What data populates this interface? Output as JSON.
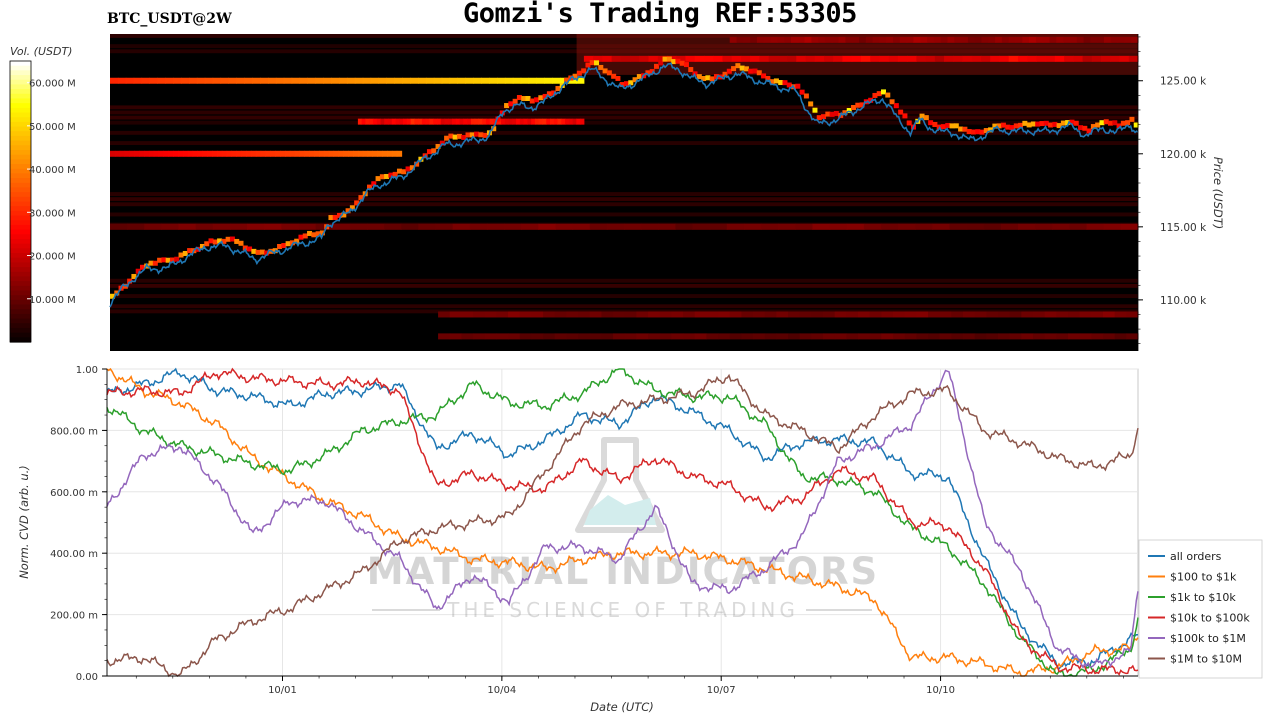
{
  "header": {
    "title": "Gomzi's Trading REF:53305",
    "symbol": "BTC_USDT@2W"
  },
  "watermark": {
    "brand": "MATERIAL INDICATORS",
    "tagline": "THE SCIENCE OF TRADING"
  },
  "chart_data": [
    {
      "type": "heatmap",
      "title": "BTC_USDT@2W",
      "ylabel": "Price (USDT)",
      "ylim": [
        106.5,
        128.2
      ],
      "yticks": [
        {
          "value": 110,
          "label": "110.00 k"
        },
        {
          "value": 115,
          "label": "115.00 k"
        },
        {
          "value": 120,
          "label": "120.00 k"
        },
        {
          "value": 125,
          "label": "125.00 k"
        }
      ],
      "xlim": [
        0,
        14.1
      ],
      "colorbar": {
        "label": "Vol. (USDT)",
        "range": [
          0,
          65
        ],
        "ticks": [
          {
            "value": 10,
            "label": "10.000 M"
          },
          {
            "value": 20,
            "label": "20.000 M"
          },
          {
            "value": 30,
            "label": "30.000 M"
          },
          {
            "value": 40,
            "label": "40.000 M"
          },
          {
            "value": 50,
            "label": "50.000 M"
          },
          {
            "value": 60,
            "label": "60.000 M"
          }
        ]
      },
      "price_series": {
        "name": "price",
        "color": "#1f77b4",
        "x": [
          0.0,
          0.2,
          0.35,
          0.5,
          0.8,
          1.0,
          1.3,
          1.6,
          1.9,
          2.0,
          2.3,
          2.6,
          2.9,
          3.0,
          3.3,
          3.5,
          3.7,
          4.0,
          4.3,
          4.6,
          4.9,
          5.2,
          5.4,
          5.6,
          5.8,
          5.95,
          6.2,
          6.6,
          7.0,
          7.3,
          7.6,
          7.8,
          8.0,
          8.2,
          8.6,
          9.0,
          9.4,
          9.7,
          10.0,
          10.3,
          10.6,
          10.8,
          10.98,
          11.1,
          11.25,
          11.4,
          11.6,
          11.8,
          12.0,
          12.2,
          12.4,
          12.6,
          12.8,
          13.0,
          13.2,
          13.4,
          13.6,
          13.8,
          14.0,
          14.05
        ],
        "y": [
          109.8,
          110.9,
          111.6,
          112.1,
          112.2,
          112.8,
          113.6,
          113.7,
          113.0,
          112.8,
          113.3,
          113.8,
          114.2,
          115.2,
          116.0,
          117.2,
          117.9,
          118.4,
          119.6,
          120.6,
          120.8,
          121.2,
          123.0,
          123.3,
          123.2,
          123.5,
          124.6,
          125.8,
          124.4,
          125.1,
          126.0,
          125.8,
          125.1,
          124.8,
          125.5,
          124.8,
          124.3,
          122.0,
          122.4,
          123.2,
          123.8,
          122.4,
          121.5,
          122.3,
          121.8,
          121.5,
          121.4,
          120.9,
          121.3,
          121.7,
          121.5,
          121.6,
          121.5,
          121.7,
          121.9,
          121.2,
          121.8,
          121.4,
          122.1,
          121.5
        ]
      },
      "liquidity_bands": [
        {
          "price": 125.0,
          "x_start": 0.0,
          "x_end": 6.5,
          "vol": 55
        },
        {
          "price": 120.0,
          "x_start": 0.0,
          "x_end": 4.0,
          "vol": 40
        },
        {
          "price": 122.2,
          "x_start": 3.4,
          "x_end": 6.5,
          "vol": 32
        },
        {
          "price": 126.5,
          "x_start": 6.5,
          "x_end": 14.1,
          "vol": 28
        },
        {
          "price": 127.8,
          "x_start": 8.5,
          "x_end": 14.1,
          "vol": 18
        },
        {
          "price": 115.0,
          "x_start": 0.0,
          "x_end": 14.1,
          "vol": 14
        },
        {
          "price": 109.0,
          "x_start": 4.5,
          "x_end": 14.1,
          "vol": 14
        },
        {
          "price": 107.5,
          "x_start": 4.5,
          "x_end": 14.1,
          "vol": 12
        }
      ]
    },
    {
      "type": "line",
      "xlabel": "Date (UTC)",
      "ylabel": "Norm. CVD (arb. u.)",
      "xlim": [
        0,
        14.1
      ],
      "ylim": [
        0,
        1
      ],
      "xticks": [
        {
          "value": 2.4,
          "label": "10/01"
        },
        {
          "value": 5.4,
          "label": "10/04"
        },
        {
          "value": 8.4,
          "label": "10/07"
        },
        {
          "value": 11.4,
          "label": "10/10"
        }
      ],
      "yticks": [
        {
          "value": 0.0,
          "label": "0.00"
        },
        {
          "value": 0.2,
          "label": "200.00 m"
        },
        {
          "value": 0.4,
          "label": "400.00 m"
        },
        {
          "value": 0.6,
          "label": "600.00 m"
        },
        {
          "value": 0.8,
          "label": "800.00 m"
        },
        {
          "value": 1.0,
          "label": "1.00"
        }
      ],
      "legend_position": "right",
      "x": [
        0,
        0.5,
        1,
        1.5,
        2,
        2.5,
        3,
        3.5,
        4,
        4.5,
        5,
        5.5,
        6,
        6.5,
        7,
        7.5,
        8,
        8.5,
        9,
        9.5,
        10,
        10.5,
        11,
        11.5,
        12,
        12.5,
        13,
        13.5,
        14,
        14.1
      ],
      "series": [
        {
          "name": "all orders",
          "color": "#1f77b4",
          "values": [
            0.92,
            0.95,
            0.99,
            0.93,
            0.91,
            0.88,
            0.92,
            0.93,
            0.95,
            0.74,
            0.79,
            0.72,
            0.77,
            0.85,
            0.82,
            0.91,
            0.86,
            0.8,
            0.71,
            0.76,
            0.77,
            0.76,
            0.66,
            0.65,
            0.38,
            0.16,
            0.04,
            0.05,
            0.12,
            0.13
          ]
        },
        {
          "name": "$100 to $1k",
          "color": "#ff7f0e",
          "values": [
            1.0,
            0.93,
            0.89,
            0.82,
            0.71,
            0.64,
            0.57,
            0.52,
            0.45,
            0.42,
            0.38,
            0.37,
            0.35,
            0.38,
            0.4,
            0.4,
            0.4,
            0.38,
            0.35,
            0.32,
            0.29,
            0.25,
            0.06,
            0.06,
            0.04,
            0.01,
            0.03,
            0.08,
            0.09,
            0.14
          ]
        },
        {
          "name": "$1k to $10k",
          "color": "#2ca02c",
          "values": [
            0.88,
            0.8,
            0.75,
            0.72,
            0.69,
            0.67,
            0.72,
            0.8,
            0.83,
            0.85,
            0.95,
            0.89,
            0.88,
            0.92,
            1.0,
            0.93,
            0.91,
            0.91,
            0.82,
            0.65,
            0.64,
            0.6,
            0.48,
            0.42,
            0.3,
            0.12,
            0.0,
            0.02,
            0.09,
            0.18
          ]
        },
        {
          "name": "$10k to $100k",
          "color": "#d62728",
          "values": [
            0.92,
            0.93,
            0.92,
            0.99,
            0.97,
            0.96,
            0.95,
            0.96,
            0.93,
            0.62,
            0.66,
            0.62,
            0.61,
            0.7,
            0.64,
            0.71,
            0.65,
            0.62,
            0.55,
            0.58,
            0.67,
            0.64,
            0.5,
            0.49,
            0.35,
            0.12,
            0.03,
            0.02,
            0.02,
            0.01
          ]
        },
        {
          "name": "$100k to $1M",
          "color": "#9467bd",
          "values": [
            0.55,
            0.72,
            0.75,
            0.63,
            0.46,
            0.57,
            0.57,
            0.47,
            0.38,
            0.22,
            0.33,
            0.24,
            0.42,
            0.42,
            0.38,
            0.55,
            0.3,
            0.28,
            0.35,
            0.45,
            0.7,
            0.75,
            0.82,
            1.0,
            0.5,
            0.34,
            0.09,
            0.03,
            0.08,
            0.29
          ]
        },
        {
          "name": "$1M to $10M",
          "color": "#8c564b",
          "values": [
            0.05,
            0.06,
            0.0,
            0.12,
            0.18,
            0.22,
            0.28,
            0.34,
            0.44,
            0.48,
            0.5,
            0.52,
            0.67,
            0.82,
            0.88,
            0.9,
            0.92,
            0.98,
            0.85,
            0.8,
            0.74,
            0.85,
            0.92,
            0.93,
            0.8,
            0.76,
            0.71,
            0.68,
            0.72,
            0.81
          ]
        }
      ]
    }
  ]
}
